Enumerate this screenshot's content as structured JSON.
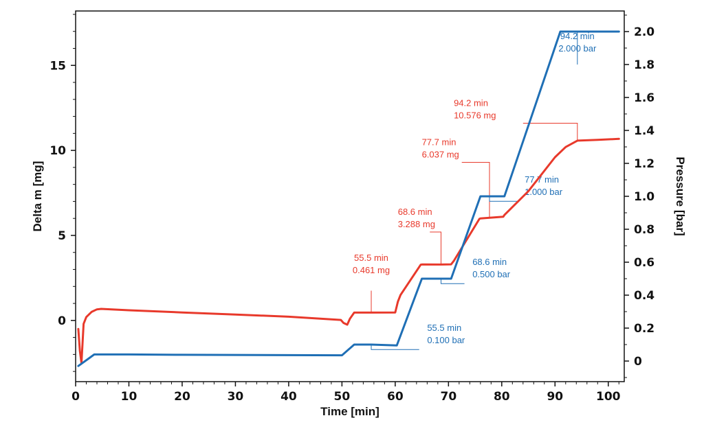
{
  "chart_data": {
    "type": "line",
    "xlabel": "Time [min]",
    "ylabel": "Delta m [mg]",
    "y2label": "Pressure [bar]",
    "xlim": [
      0,
      103
    ],
    "ylim": [
      -3.6,
      18.2
    ],
    "y2lim": [
      -0.125,
      2.125
    ],
    "grid": false,
    "x_ticks": [
      0,
      10,
      20,
      30,
      40,
      50,
      60,
      70,
      80,
      90,
      100
    ],
    "y_ticks": [
      0,
      5,
      10,
      15
    ],
    "y2_ticks": [
      0,
      0.2,
      0.4,
      0.6,
      0.8,
      1.0,
      1.2,
      1.4,
      1.6,
      1.8,
      2.0
    ],
    "y2_tick_labels": [
      "0",
      "0.2",
      "0.4",
      "0.6",
      "0.8",
      "1.0",
      "1.2",
      "1.4",
      "1.6",
      "1.8",
      "2.0"
    ],
    "colors": {
      "delta_m": "#e8392b",
      "pressure": "#1f6fb5"
    },
    "series": [
      {
        "axis": "left",
        "color": "#e8392b",
        "x": [
          0.5,
          0.8,
          1.1,
          1.5,
          2.0,
          3.0,
          4.0,
          4.8,
          10,
          20,
          30,
          40,
          49.8,
          50.3,
          51.0,
          51.5,
          52.3,
          55.5,
          60.0,
          60.5,
          61.0,
          64.8,
          65.0,
          68.6,
          70.5,
          71.0,
          75.8,
          76.0,
          77.7,
          80.3,
          80.5,
          85.0,
          90.0,
          92.0,
          94.2,
          98.0,
          102.0
        ],
        "y": [
          -0.5,
          -1.8,
          -2.5,
          -0.2,
          0.2,
          0.5,
          0.65,
          0.68,
          0.6,
          0.47,
          0.35,
          0.22,
          0.03,
          -0.15,
          -0.25,
          0.1,
          0.46,
          0.461,
          0.47,
          1.1,
          1.5,
          3.28,
          3.29,
          3.288,
          3.3,
          3.5,
          5.97,
          6.0,
          6.037,
          6.1,
          6.2,
          7.6,
          9.6,
          10.2,
          10.576,
          10.62,
          10.68
        ]
      },
      {
        "axis": "right",
        "color": "#1f6fb5",
        "x": [
          0.5,
          3.5,
          10,
          20,
          30,
          40,
          50.0,
          52.3,
          55.5,
          60.3,
          65.0,
          68.6,
          70.5,
          76.0,
          77.7,
          80.5,
          91.0,
          94.2,
          102.0
        ],
        "y": [
          -0.03,
          0.04,
          0.04,
          0.038,
          0.037,
          0.036,
          0.035,
          0.1,
          0.1,
          0.095,
          0.5,
          0.5,
          0.5,
          1.0,
          1.0,
          1.0,
          2.0,
          2.0,
          2.0
        ]
      }
    ],
    "annotations": [
      {
        "color": "#e8392b",
        "axis": "left",
        "point": [
          55.5,
          0.461
        ],
        "corner": [
          55.5,
          1.75
        ],
        "label": [
          55.5,
          2.7
        ],
        "align": "middle",
        "lines": [
          "55.5 min",
          "0.461 mg"
        ]
      },
      {
        "color": "#e8392b",
        "axis": "left",
        "point": [
          68.6,
          3.288
        ],
        "corner": [
          68.6,
          5.2
        ],
        "end": [
          66.5,
          5.2
        ],
        "label": [
          60.5,
          5.4
        ],
        "align": "start",
        "lines": [
          "68.6 min",
          "3.288 mg"
        ]
      },
      {
        "color": "#e8392b",
        "axis": "left",
        "point": [
          77.7,
          6.037
        ],
        "corner": [
          77.7,
          9.3
        ],
        "end": [
          72.5,
          9.3
        ],
        "label": [
          65.0,
          9.5
        ],
        "align": "start",
        "lines": [
          "77.7 min",
          "6.037 mg"
        ]
      },
      {
        "color": "#e8392b",
        "axis": "left",
        "point": [
          94.2,
          10.576
        ],
        "corner": [
          94.2,
          11.6
        ],
        "end": [
          84.0,
          11.6
        ],
        "label": [
          71.0,
          11.8
        ],
        "align": "start",
        "lines": [
          "94.2 min",
          "10.576 mg"
        ]
      },
      {
        "color": "#1f6fb5",
        "axis": "right",
        "point": [
          55.5,
          0.1
        ],
        "corner": [
          55.5,
          0.07
        ],
        "end": [
          64.5,
          0.07
        ],
        "label": [
          66.0,
          0.1
        ],
        "align": "start",
        "lines": [
          "55.5 min",
          "0.100 bar"
        ]
      },
      {
        "color": "#1f6fb5",
        "axis": "right",
        "point": [
          68.6,
          0.5
        ],
        "corner": [
          68.6,
          0.47
        ],
        "end": [
          73.0,
          0.47
        ],
        "label": [
          74.5,
          0.5
        ],
        "align": "start",
        "lines": [
          "68.6 min",
          "0.500 bar"
        ]
      },
      {
        "color": "#1f6fb5",
        "axis": "right",
        "point": [
          77.7,
          1.0
        ],
        "corner": [
          77.7,
          0.97
        ],
        "end": [
          83.0,
          0.97
        ],
        "label": [
          84.3,
          1.0
        ],
        "align": "start",
        "lines": [
          "77.7 min",
          "1.000 bar"
        ]
      },
      {
        "color": "#1f6fb5",
        "axis": "right",
        "point": [
          94.2,
          2.0
        ],
        "corner": [
          94.2,
          1.8
        ],
        "label": [
          94.2,
          1.87
        ],
        "align": "middle",
        "lines": [
          "94.2 min",
          "2.000 bar"
        ]
      }
    ]
  }
}
